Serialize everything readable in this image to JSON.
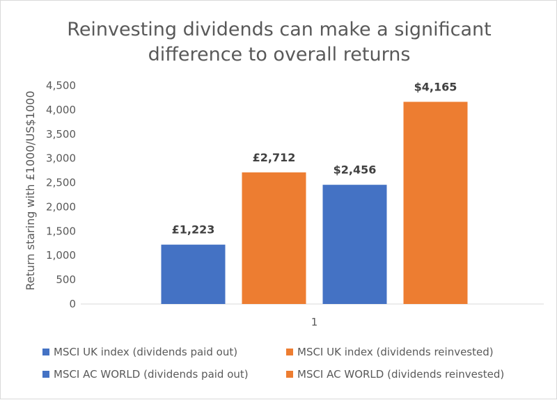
{
  "chart_data": {
    "type": "bar",
    "title": "Reinvesting dividends can make a significant difference to overall returns",
    "ylabel": "Return staring with £1000/US$1000",
    "xlabel": "",
    "ylim": [
      0,
      4500
    ],
    "yticks": [
      "0",
      "500",
      "1,000",
      "1,500",
      "2,000",
      "2,500",
      "3,000",
      "3,500",
      "4,000",
      "4,500"
    ],
    "categories": [
      "1"
    ],
    "grid": false,
    "legend_position": "bottom",
    "series": [
      {
        "name": "MSCI UK index (dividends paid out)",
        "values": [
          1223
        ],
        "label": "£1,223",
        "color": "#4472c4"
      },
      {
        "name": "MSCI UK index (dividends reinvested)",
        "values": [
          2712
        ],
        "label": "£2,712",
        "color": "#ed7d31"
      },
      {
        "name": "MSCI AC WORLD (dividends paid out)",
        "values": [
          2456
        ],
        "label": "$2,456",
        "color": "#4472c4"
      },
      {
        "name": "MSCI AC WORLD (dividends reinvested)",
        "values": [
          4165
        ],
        "label": "$4,165",
        "color": "#ed7d31"
      }
    ]
  }
}
